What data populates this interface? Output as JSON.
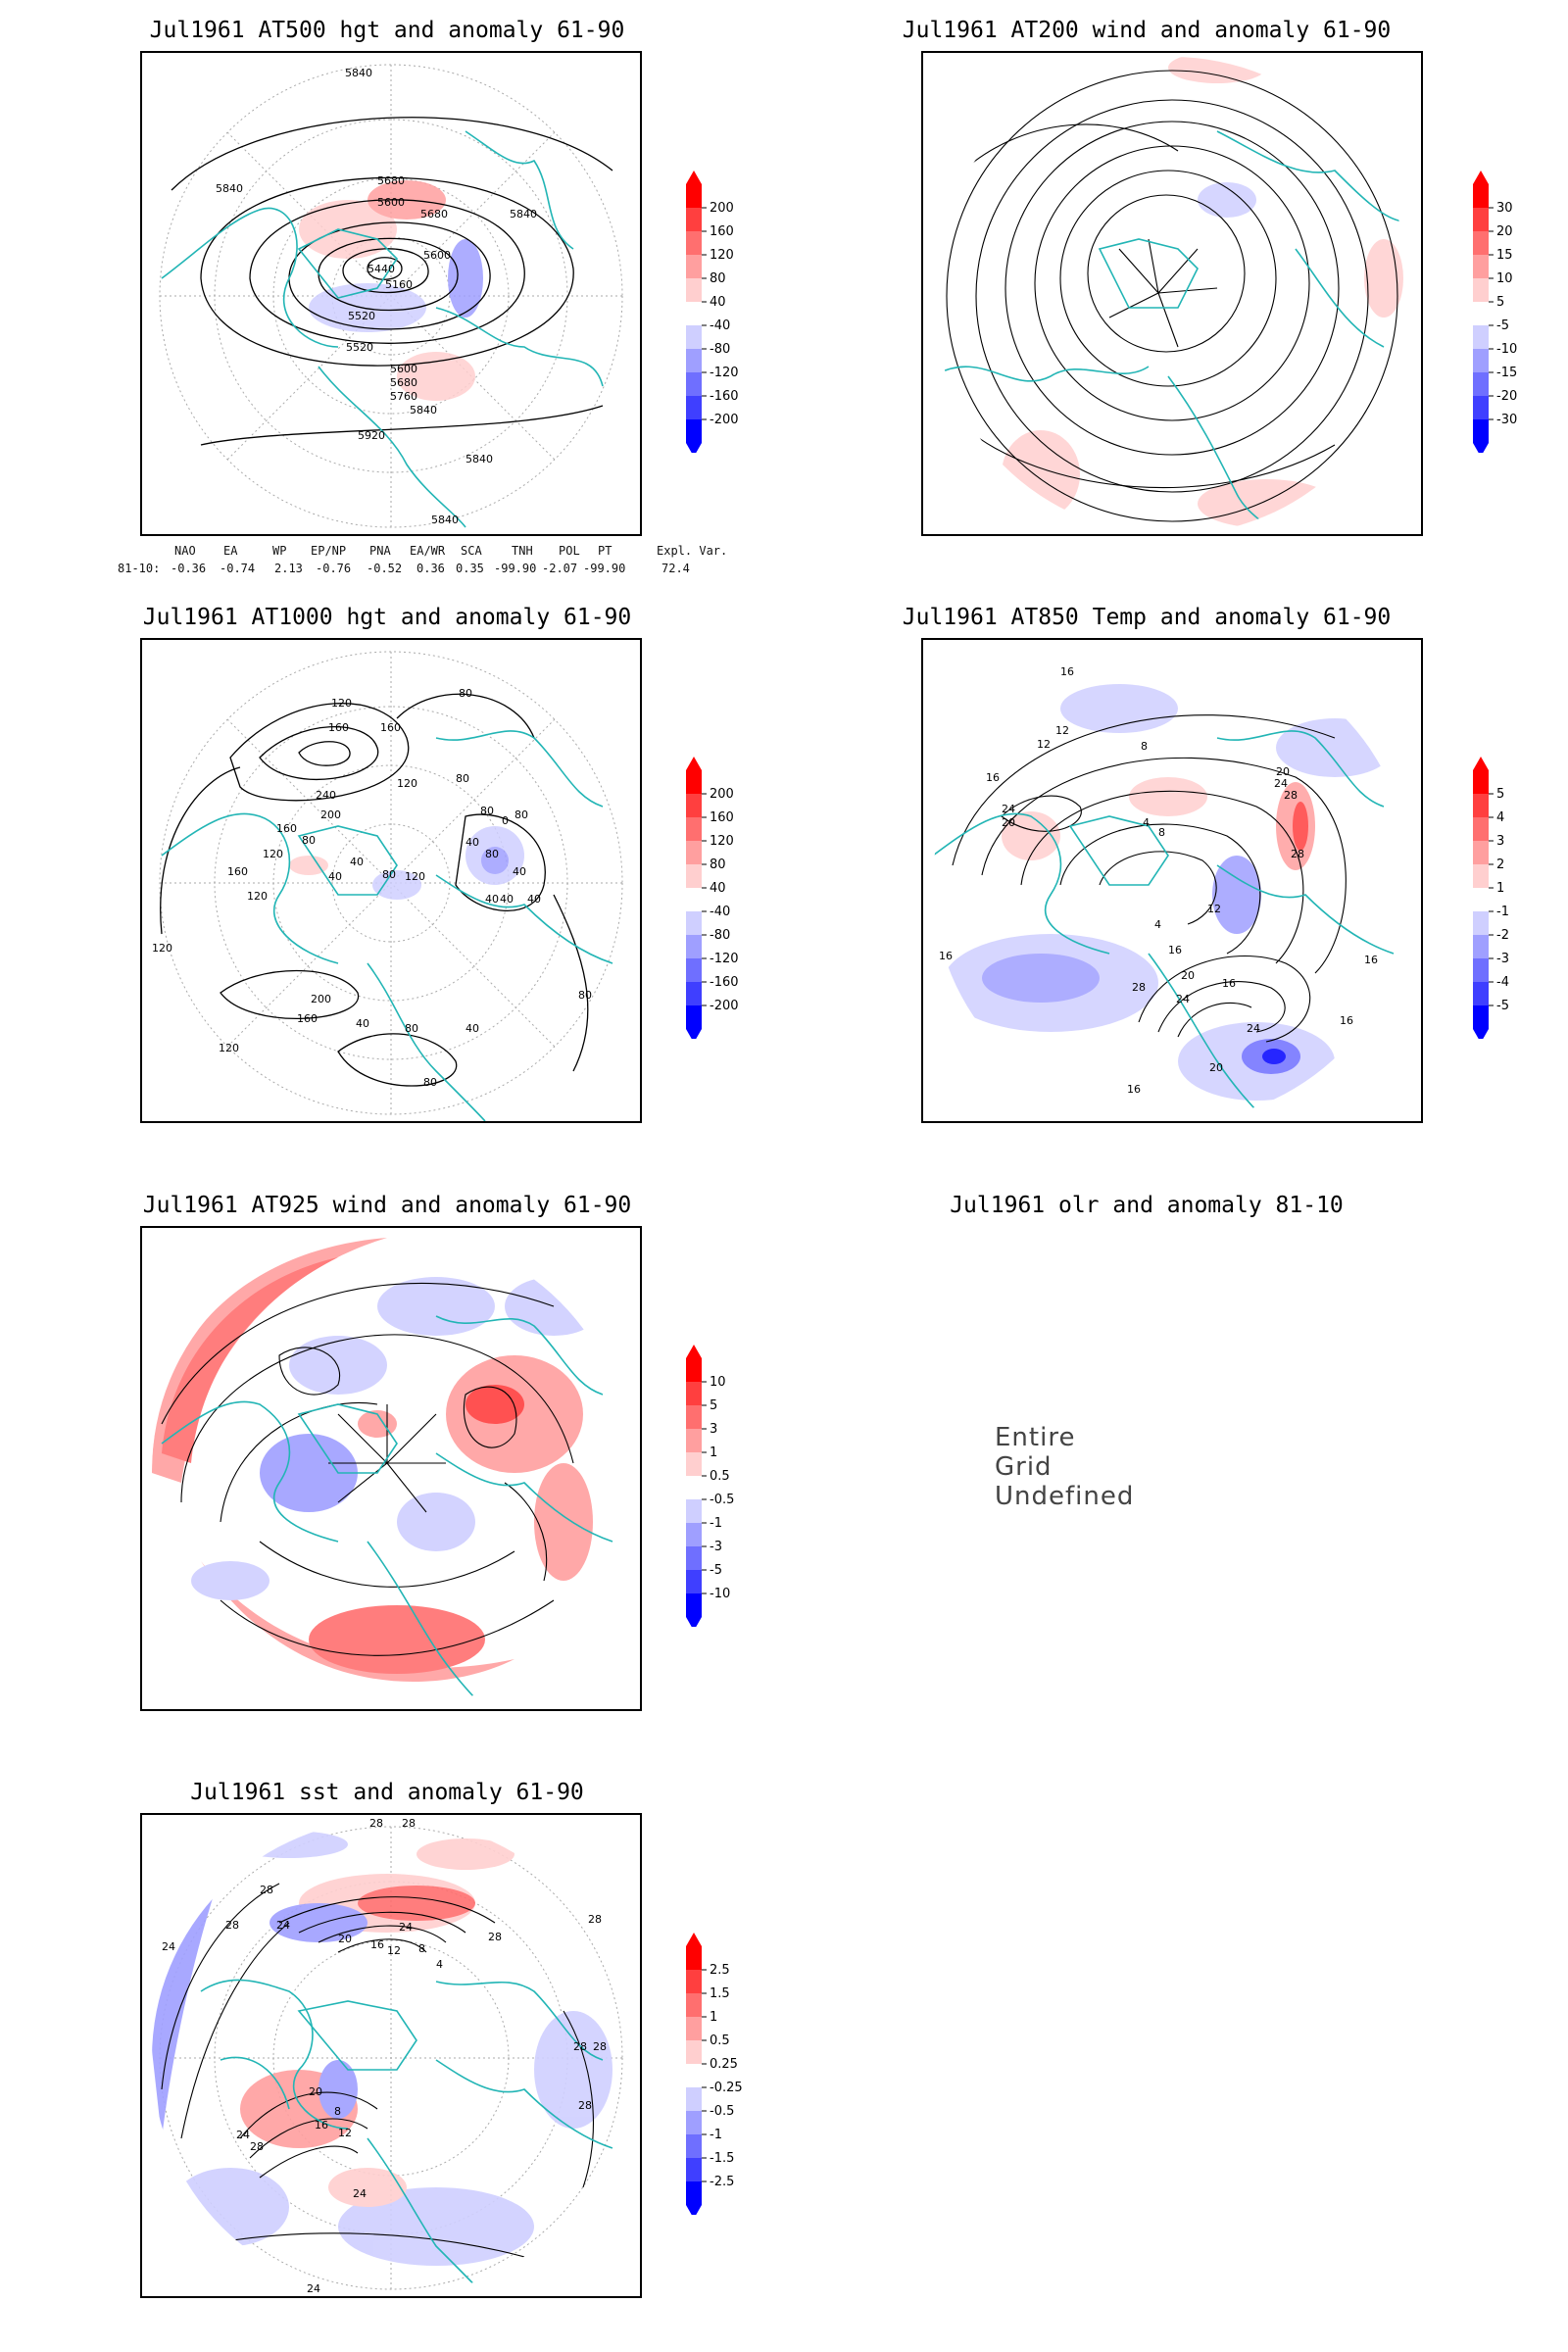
{
  "panels": [
    {
      "id": "at500",
      "title": "Jul1961 AT500 hgt and anomaly 61-90",
      "colorbar": [
        "200",
        "160",
        "120",
        "80",
        "40",
        "-40",
        "-80",
        "-120",
        "-160",
        "-200"
      ],
      "contour_labels": [
        "5840",
        "5840",
        "5680",
        "5600",
        "5680",
        "5440",
        "5160",
        "5520",
        "5520",
        "5600",
        "5680",
        "5760",
        "5840",
        "5600",
        "5840",
        "5920",
        "5840",
        "5840"
      ]
    },
    {
      "id": "at200",
      "title": "Jul1961 AT200 wind and anomaly 61-90",
      "colorbar": [
        "30",
        "20",
        "15",
        "10",
        "5",
        "-5",
        "-10",
        "-15",
        "-20",
        "-30"
      ],
      "contour_labels": []
    },
    {
      "id": "at1000",
      "title": "Jul1961 AT1000 hgt and anomaly 61-90",
      "colorbar": [
        "200",
        "160",
        "120",
        "80",
        "40",
        "-40",
        "-80",
        "-120",
        "-160",
        "-200"
      ],
      "contour_labels": [
        "80",
        "120",
        "160",
        "160",
        "240",
        "200",
        "120",
        "80",
        "160",
        "120",
        "80",
        "40",
        "120",
        "80",
        "40",
        "160",
        "120",
        "40",
        "80",
        "0",
        "80",
        "40",
        "40",
        "40",
        "80",
        "40",
        "200",
        "160",
        "120",
        "40",
        "80",
        "80",
        "40",
        "80",
        "120"
      ]
    },
    {
      "id": "at850",
      "title": "Jul1961 AT850 Temp and anomaly 61-90",
      "colorbar": [
        "5",
        "4",
        "3",
        "2",
        "1",
        "-1",
        "-2",
        "-3",
        "-4",
        "-5"
      ],
      "contour_labels": [
        "16",
        "12",
        "12",
        "8",
        "16",
        "24",
        "20",
        "20",
        "24",
        "28",
        "4",
        "8",
        "12",
        "28",
        "16",
        "4",
        "16",
        "20",
        "28",
        "24",
        "16",
        "24",
        "20",
        "16",
        "16",
        "16"
      ]
    },
    {
      "id": "at925",
      "title": "Jul1961 AT925 wind and anomaly 61-90",
      "colorbar": [
        "10",
        "5",
        "3",
        "1",
        "0.5",
        "-0.5",
        "-1",
        "-3",
        "-5",
        "-10"
      ],
      "contour_labels": []
    },
    {
      "id": "olr",
      "title": "Jul1961 olr and anomaly 81-10",
      "undefined_text": "Entire Grid Undefined"
    },
    {
      "id": "sst",
      "title": "Jul1961 sst and anomaly 61-90",
      "colorbar": [
        "2.5",
        "1.5",
        "1",
        "0.5",
        "0.25",
        "-0.25",
        "-0.5",
        "-1",
        "-1.5",
        "-2.5"
      ],
      "contour_labels": [
        "28",
        "28",
        "28",
        "28",
        "24",
        "24",
        "20",
        "16",
        "12",
        "8",
        "4",
        "24",
        "28",
        "28",
        "24",
        "28",
        "20",
        "16",
        "12",
        "8",
        "28",
        "28",
        "28",
        "24",
        "24"
      ]
    }
  ],
  "teleconnection": {
    "headers": [
      "NAO",
      "EA",
      "WP",
      "EP/NP",
      "PNA",
      "EA/WR",
      "SCA",
      "TNH",
      "POL",
      "PT",
      "Expl. Var."
    ],
    "row_label": "81-10:",
    "values": [
      "-0.36",
      "-0.74",
      "2.13",
      "-0.76",
      "-0.52",
      "0.36",
      "0.35",
      "-99.90",
      "-2.07",
      "-99.90",
      "72.4"
    ]
  },
  "colors": {
    "anom_pos": [
      "#ff0000",
      "#ff3f3f",
      "#ff6f6f",
      "#ff9f9f",
      "#ffcfcf"
    ],
    "anom_neg": [
      "#cfcfff",
      "#9f9fff",
      "#6f6fff",
      "#3f3fff",
      "#0000ff"
    ],
    "coast": "#22b5b5",
    "contour": "#000000",
    "grid": "#aaaaaa"
  }
}
